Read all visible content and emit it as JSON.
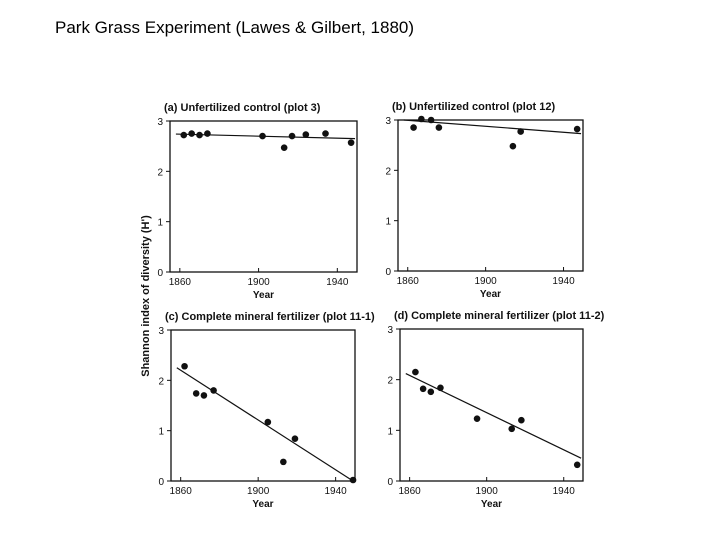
{
  "slide": {
    "title": "Park Grass Experiment (Lawes & Gilbert, 1880)"
  },
  "figure": {
    "ylabel": "Shannon index of diversity (H')"
  },
  "chart_data": [
    {
      "type": "scatter",
      "title": "(a) Unfertilized control (plot 3)",
      "xlabel": "Year",
      "ylabel": "Shannon index of diversity (H')",
      "xlim": [
        1855,
        1950
      ],
      "ylim": [
        0,
        3
      ],
      "xticks": [
        1860,
        1900,
        1940
      ],
      "yticks": [
        0,
        1,
        2,
        3
      ],
      "points": [
        {
          "x": 1862,
          "y": 2.72
        },
        {
          "x": 1866,
          "y": 2.75
        },
        {
          "x": 1870,
          "y": 2.72
        },
        {
          "x": 1874,
          "y": 2.75
        },
        {
          "x": 1902,
          "y": 2.7
        },
        {
          "x": 1913,
          "y": 2.47
        },
        {
          "x": 1917,
          "y": 2.7
        },
        {
          "x": 1924,
          "y": 2.73
        },
        {
          "x": 1934,
          "y": 2.75
        },
        {
          "x": 1947,
          "y": 2.57
        }
      ],
      "trend": {
        "x": [
          1858,
          1949
        ],
        "y": [
          2.74,
          2.65
        ]
      },
      "color": "#111111"
    },
    {
      "type": "scatter",
      "title": "(b) Unfertilized control (plot 12)",
      "xlabel": "Year",
      "ylabel": "Shannon index of diversity (H')",
      "xlim": [
        1855,
        1950
      ],
      "ylim": [
        0,
        3
      ],
      "xticks": [
        1860,
        1900,
        1940
      ],
      "yticks": [
        0,
        1,
        2,
        3
      ],
      "points": [
        {
          "x": 1863,
          "y": 2.85
        },
        {
          "x": 1867,
          "y": 3.02
        },
        {
          "x": 1872,
          "y": 3.0
        },
        {
          "x": 1876,
          "y": 2.85
        },
        {
          "x": 1914,
          "y": 2.48
        },
        {
          "x": 1918,
          "y": 2.77
        },
        {
          "x": 1947,
          "y": 2.82
        }
      ],
      "trend": {
        "x": [
          1858,
          1949
        ],
        "y": [
          3.0,
          2.73
        ]
      },
      "color": "#111111"
    },
    {
      "type": "scatter",
      "title": "(c) Complete mineral fertilizer (plot 11-1)",
      "xlabel": "Year",
      "ylabel": "Shannon index of diversity (H')",
      "xlim": [
        1855,
        1950
      ],
      "ylim": [
        0,
        3
      ],
      "xticks": [
        1860,
        1900,
        1940
      ],
      "yticks": [
        0,
        1,
        2,
        3
      ],
      "points": [
        {
          "x": 1862,
          "y": 2.28
        },
        {
          "x": 1868,
          "y": 1.74
        },
        {
          "x": 1872,
          "y": 1.7
        },
        {
          "x": 1877,
          "y": 1.8
        },
        {
          "x": 1905,
          "y": 1.17
        },
        {
          "x": 1913,
          "y": 0.38
        },
        {
          "x": 1919,
          "y": 0.84
        },
        {
          "x": 1949,
          "y": 0.02
        }
      ],
      "trend": {
        "x": [
          1858,
          1949
        ],
        "y": [
          2.25,
          0.0
        ]
      },
      "color": "#111111"
    },
    {
      "type": "scatter",
      "title": "(d) Complete mineral fertilizer (plot 11-2)",
      "xlabel": "Year",
      "ylabel": "Shannon index of diversity (H')",
      "xlim": [
        1855,
        1950
      ],
      "ylim": [
        0,
        3
      ],
      "xticks": [
        1860,
        1900,
        1940
      ],
      "yticks": [
        0,
        1,
        2,
        3
      ],
      "points": [
        {
          "x": 1863,
          "y": 2.15
        },
        {
          "x": 1867,
          "y": 1.82
        },
        {
          "x": 1871,
          "y": 1.76
        },
        {
          "x": 1876,
          "y": 1.84
        },
        {
          "x": 1895,
          "y": 1.23
        },
        {
          "x": 1913,
          "y": 1.03
        },
        {
          "x": 1918,
          "y": 1.2
        },
        {
          "x": 1947,
          "y": 0.32
        }
      ],
      "trend": {
        "x": [
          1858,
          1949
        ],
        "y": [
          2.12,
          0.45
        ]
      },
      "color": "#111111"
    }
  ]
}
